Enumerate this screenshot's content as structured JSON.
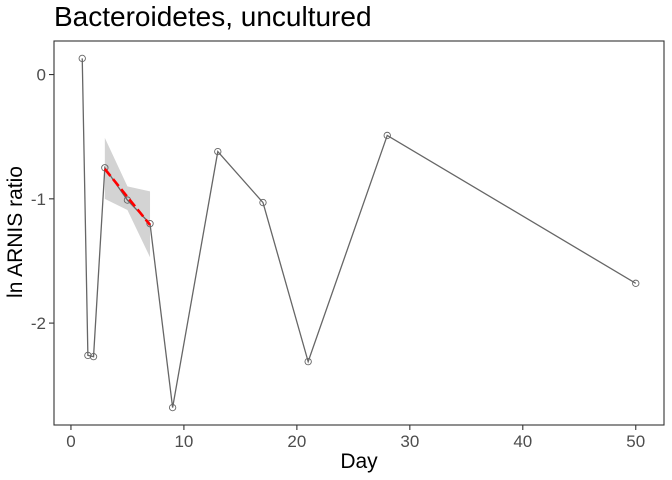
{
  "chart_data": {
    "type": "line",
    "title": "Bacteroidetes, uncultured",
    "xlabel": "Day",
    "ylabel": "ln ARNIS ratio",
    "xlim": [
      -1.5,
      52.5
    ],
    "ylim": [
      -2.82,
      0.27
    ],
    "xticks": [
      0,
      10,
      20,
      30,
      40,
      50
    ],
    "yticks": [
      0,
      -1,
      -2
    ],
    "grid": false,
    "series": [
      {
        "points": [
          {
            "x": 1,
            "y": 0.13
          },
          {
            "x": 1.5,
            "y": -2.26
          },
          {
            "x": 2,
            "y": -2.27
          },
          {
            "x": 3,
            "y": -0.75
          },
          {
            "x": 5,
            "y": -1.01
          },
          {
            "x": 7,
            "y": -1.2
          },
          {
            "x": 9,
            "y": -2.68
          },
          {
            "x": 13,
            "y": -0.62
          },
          {
            "x": 17,
            "y": -1.03
          },
          {
            "x": 21,
            "y": -2.31
          },
          {
            "x": 28,
            "y": -0.49
          },
          {
            "x": 50,
            "y": -1.68
          }
        ],
        "color": "#666666"
      }
    ],
    "trend": {
      "x": [
        3,
        7
      ],
      "y": [
        -0.76,
        -1.21
      ],
      "band": [
        {
          "x": 3,
          "lo": -1.0,
          "hi": -0.51
        },
        {
          "x": 5,
          "lo": -1.09,
          "hi": -0.9
        },
        {
          "x": 7,
          "lo": -1.47,
          "hi": -0.94
        }
      ],
      "color": "#ff0000",
      "band_color": "#d3d3d3"
    }
  }
}
